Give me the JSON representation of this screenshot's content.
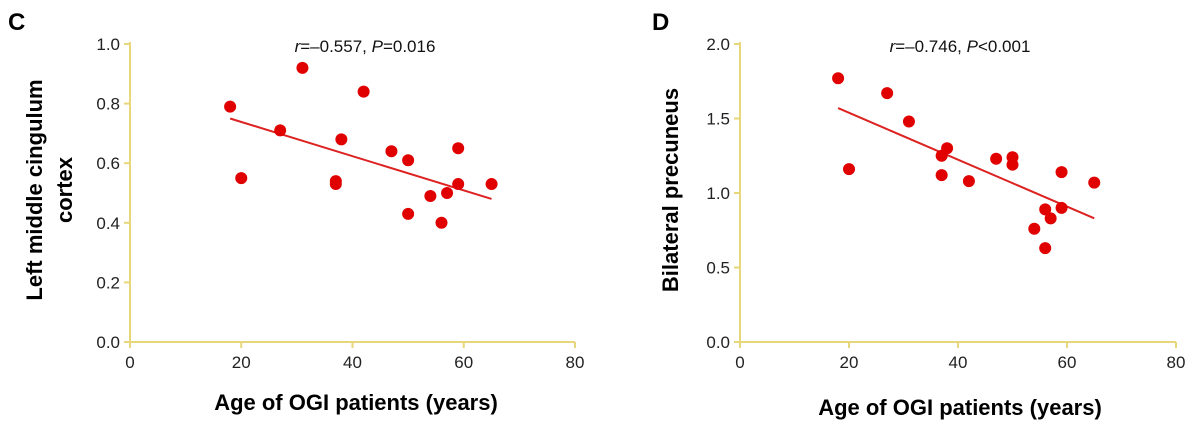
{
  "colors": {
    "axis": "#e8d77a",
    "point": "#e00000",
    "fit_line": "#dd2222",
    "text": "#000000"
  },
  "chart_data": [
    {
      "type": "scatter",
      "panel_label": "C",
      "stat_r": "r",
      "stat_r_value": "=–0.557, ",
      "stat_p": "P",
      "stat_p_value": "=0.016",
      "xlabel": "Age of OGI patients (years)",
      "ylabel_lines": [
        "Left middle cingulum",
        "cortex"
      ],
      "xlim": [
        0,
        80
      ],
      "ylim": [
        0,
        1.0
      ],
      "xticks": [
        "0",
        "20",
        "40",
        "60",
        "80"
      ],
      "yticks": [
        "0.0",
        "0.2",
        "0.4",
        "0.6",
        "0.8",
        "1.0"
      ],
      "points": [
        {
          "x": 18,
          "y": 0.79
        },
        {
          "x": 20,
          "y": 0.55
        },
        {
          "x": 27,
          "y": 0.71
        },
        {
          "x": 31,
          "y": 0.92
        },
        {
          "x": 37,
          "y": 0.54
        },
        {
          "x": 37,
          "y": 0.53
        },
        {
          "x": 38,
          "y": 0.68
        },
        {
          "x": 42,
          "y": 0.84
        },
        {
          "x": 47,
          "y": 0.64
        },
        {
          "x": 50,
          "y": 0.61
        },
        {
          "x": 50,
          "y": 0.43
        },
        {
          "x": 54,
          "y": 0.49
        },
        {
          "x": 56,
          "y": 0.4
        },
        {
          "x": 57,
          "y": 0.5
        },
        {
          "x": 59,
          "y": 0.65
        },
        {
          "x": 59,
          "y": 0.53
        },
        {
          "x": 65,
          "y": 0.53
        }
      ],
      "fit_line": [
        {
          "x": 18,
          "y": 0.75
        },
        {
          "x": 65,
          "y": 0.48
        }
      ]
    },
    {
      "type": "scatter",
      "panel_label": "D",
      "stat_r": "r",
      "stat_r_value": "=–0.746, ",
      "stat_p": "P",
      "stat_p_value": "<0.001",
      "xlabel": "Age of OGI patients (years)",
      "ylabel_lines": [
        "Bilateral precuneus"
      ],
      "xlim": [
        0,
        80
      ],
      "ylim": [
        0,
        2.0
      ],
      "xticks": [
        "0",
        "20",
        "40",
        "60",
        "80"
      ],
      "yticks": [
        "0.0",
        "0.5",
        "1.0",
        "1.5",
        "2.0"
      ],
      "points": [
        {
          "x": 18,
          "y": 1.77
        },
        {
          "x": 20,
          "y": 1.16
        },
        {
          "x": 27,
          "y": 1.67
        },
        {
          "x": 31,
          "y": 1.48
        },
        {
          "x": 37,
          "y": 1.25
        },
        {
          "x": 37,
          "y": 1.12
        },
        {
          "x": 38,
          "y": 1.3
        },
        {
          "x": 42,
          "y": 1.08
        },
        {
          "x": 47,
          "y": 1.23
        },
        {
          "x": 50,
          "y": 1.24
        },
        {
          "x": 50,
          "y": 1.19
        },
        {
          "x": 54,
          "y": 0.76
        },
        {
          "x": 56,
          "y": 0.89
        },
        {
          "x": 56,
          "y": 0.63
        },
        {
          "x": 57,
          "y": 0.83
        },
        {
          "x": 59,
          "y": 1.14
        },
        {
          "x": 59,
          "y": 0.9
        },
        {
          "x": 65,
          "y": 1.07
        }
      ],
      "fit_line": [
        {
          "x": 18,
          "y": 1.57
        },
        {
          "x": 65,
          "y": 0.83
        }
      ]
    }
  ]
}
